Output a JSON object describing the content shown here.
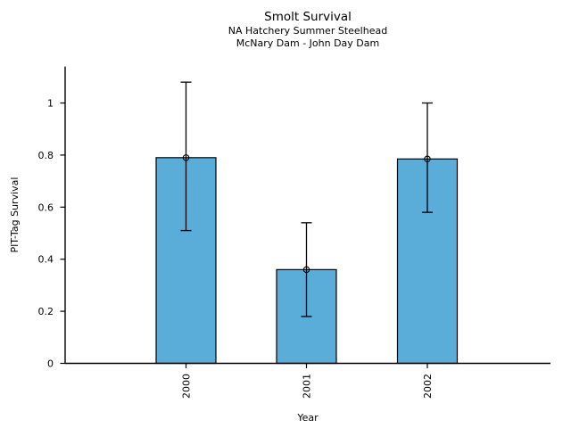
{
  "chart_data": {
    "type": "bar",
    "title": "Smolt Survival",
    "subtitles": [
      "NA Hatchery Summer Steelhead",
      "McNary Dam - John Day Dam"
    ],
    "xlabel": "Year",
    "ylabel": "PIT-Tag Survival",
    "categories": [
      "2000",
      "2001",
      "2002"
    ],
    "values": [
      0.79,
      0.36,
      0.785
    ],
    "error_low": [
      0.51,
      0.18,
      0.58
    ],
    "error_high": [
      1.08,
      0.54,
      1.0
    ],
    "ytick_values": [
      0,
      0.2,
      0.4,
      0.6,
      0.8,
      1
    ],
    "ytick_labels": [
      "0",
      "0.2",
      "0.4",
      "0.6",
      "0.8",
      "1"
    ],
    "ylim": [
      0,
      1.14
    ],
    "grid": false,
    "legend": "none",
    "xtick_label_rotation_deg": -90,
    "marker": "open-circle",
    "colors": {
      "bar_fill": "#5AACD9",
      "bar_edge": "#000000",
      "error_bar": "#000000",
      "axis": "#000000",
      "text": "#000000",
      "background": "#ffffff"
    }
  }
}
